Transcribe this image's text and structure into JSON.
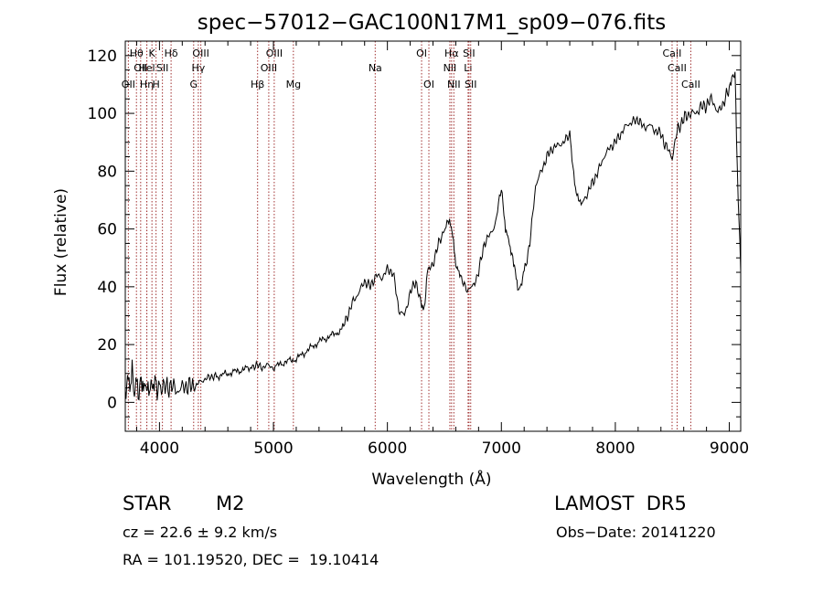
{
  "chart_data": {
    "type": "line",
    "title": "spec−57012−GAC100N17M1_sp09−076.fits",
    "xlabel": "Wavelength (Å)",
    "ylabel": "Flux (relative)",
    "xlim": [
      3700,
      9100
    ],
    "ylim": [
      -10,
      125
    ],
    "xticks": [
      4000,
      5000,
      6000,
      7000,
      8000,
      9000
    ],
    "yticks": [
      0,
      20,
      40,
      60,
      80,
      100,
      120
    ],
    "xtick_labels": [
      "4000",
      "5000",
      "6000",
      "7000",
      "8000",
      "9000"
    ],
    "ytick_labels": [
      "0",
      "20",
      "40",
      "60",
      "80",
      "100",
      "120"
    ],
    "grid": false,
    "line_color": "#000000",
    "marker_color": "#a03030",
    "series": [
      {
        "x": [
          3700,
          3720,
          3740,
          3760,
          3780,
          3800,
          3820,
          3840,
          3860,
          3880,
          3900,
          3920,
          3940,
          3960,
          3980,
          4000,
          4050,
          4100,
          4150,
          4200,
          4250,
          4300,
          4350,
          4400,
          4450,
          4500,
          4600,
          4700,
          4800,
          4850,
          4900,
          4950,
          5000,
          5100,
          5200,
          5300,
          5400,
          5500,
          5600,
          5650,
          5700,
          5750,
          5800,
          5850,
          5900,
          5950,
          6000,
          6050,
          6100,
          6150,
          6200,
          6250,
          6300,
          6330,
          6350,
          6400,
          6450,
          6500,
          6530,
          6560,
          6580,
          6600,
          6620,
          6650,
          6700,
          6750,
          6800,
          6850,
          6900,
          6950,
          7000,
          7030,
          7050,
          7070,
          7100,
          7130,
          7150,
          7180,
          7200,
          7250,
          7300,
          7350,
          7400,
          7450,
          7500,
          7550,
          7600,
          7620,
          7650,
          7670,
          7700,
          7750,
          7800,
          7850,
          7900,
          7950,
          8000,
          8050,
          8100,
          8150,
          8200,
          8250,
          8300,
          8350,
          8400,
          8450,
          8500,
          8550,
          8600,
          8650,
          8700,
          8750,
          8800,
          8850,
          8900,
          8950,
          9000,
          9030,
          9050,
          9070,
          9100
        ],
        "y": [
          2,
          9,
          5,
          11,
          3,
          8,
          2,
          9,
          4,
          7,
          3,
          6,
          5,
          8,
          4,
          6,
          5,
          6,
          4,
          5,
          6,
          5,
          7,
          8,
          9,
          9,
          10,
          11,
          12,
          13,
          12,
          13,
          12,
          14,
          15,
          18,
          21,
          23,
          25,
          30,
          35,
          38,
          42,
          40,
          44,
          43,
          46,
          45,
          32,
          30,
          38,
          42,
          33,
          34,
          45,
          48,
          55,
          60,
          64,
          62,
          55,
          48,
          45,
          42,
          39,
          40,
          45,
          55,
          58,
          62,
          75,
          62,
          58,
          55,
          50,
          43,
          39,
          42,
          45,
          55,
          75,
          80,
          85,
          88,
          89,
          90,
          93,
          85,
          75,
          70,
          68,
          72,
          76,
          80,
          85,
          88,
          90,
          93,
          96,
          97,
          98,
          95,
          96,
          94,
          93,
          88,
          85,
          95,
          98,
          100,
          100,
          102,
          103,
          105,
          100,
          104,
          108,
          112,
          115,
          80,
          45
        ]
      }
    ],
    "line_markers": [
      {
        "wl": 3727,
        "label": "OII",
        "row": 3
      },
      {
        "wl": 3798,
        "label": "Hθ",
        "row": 1
      },
      {
        "wl": 3835,
        "label": "OII",
        "row": 2
      },
      {
        "wl": 3889,
        "label": "Hel",
        "row": 2
      },
      {
        "wl": 3889,
        "label": "Hη",
        "row": 3
      },
      {
        "wl": 3934,
        "label": "K",
        "row": 1
      },
      {
        "wl": 3970,
        "label": "H",
        "row": 3
      },
      {
        "wl": 4026,
        "label": "SII",
        "row": 2
      },
      {
        "wl": 4102,
        "label": "Hδ",
        "row": 1
      },
      {
        "wl": 4300,
        "label": "G",
        "row": 3
      },
      {
        "wl": 4341,
        "label": "Hγ",
        "row": 2
      },
      {
        "wl": 4363,
        "label": "OIII",
        "row": 1
      },
      {
        "wl": 4861,
        "label": "Hβ",
        "row": 3
      },
      {
        "wl": 4959,
        "label": "OIII",
        "row": 2
      },
      {
        "wl": 5007,
        "label": "OIII",
        "row": 1
      },
      {
        "wl": 5175,
        "label": "Mg",
        "row": 3
      },
      {
        "wl": 5893,
        "label": "Na",
        "row": 2
      },
      {
        "wl": 6300,
        "label": "OI",
        "row": 1
      },
      {
        "wl": 6364,
        "label": "OI",
        "row": 3
      },
      {
        "wl": 6548,
        "label": "NII",
        "row": 2
      },
      {
        "wl": 6563,
        "label": "Hα",
        "row": 1
      },
      {
        "wl": 6583,
        "label": "NII",
        "row": 3
      },
      {
        "wl": 6708,
        "label": "Li",
        "row": 2
      },
      {
        "wl": 6716,
        "label": "SII",
        "row": 1
      },
      {
        "wl": 6731,
        "label": "SII",
        "row": 3
      },
      {
        "wl": 8498,
        "label": "CaII",
        "row": 1
      },
      {
        "wl": 8542,
        "label": "CaII",
        "row": 2
      },
      {
        "wl": 8662,
        "label": "CaII",
        "row": 3
      }
    ]
  },
  "info": {
    "object_class": "STAR",
    "subclass": "M2",
    "survey": "LAMOST  DR5",
    "redshift": "cz = 22.6 ± 9.2 km/s",
    "obs_date": "Obs−Date: 20141220",
    "coords": "RA = 101.19520, DEC =  19.10414"
  }
}
